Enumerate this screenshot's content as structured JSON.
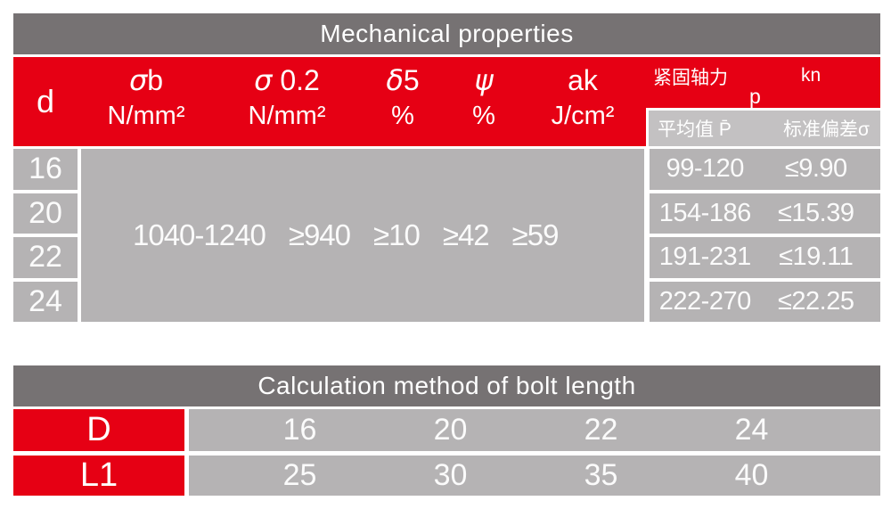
{
  "colors": {
    "red": "#e60014",
    "header_gray": "#767273",
    "cell_gray": "#b5b3b4",
    "subheader_gray": "#c3c1c2",
    "text_white": "#ffffff"
  },
  "mech_table": {
    "title": "Mechanical properties",
    "d_header": "d",
    "columns": [
      {
        "symbol_greek": "σ",
        "symbol_rest": "b",
        "unit": "N/mm²"
      },
      {
        "symbol_greek": "σ",
        "symbol_rest": " 0.2",
        "unit": "N/mm²"
      },
      {
        "symbol_greek": "δ",
        "symbol_rest": "5",
        "unit": "%"
      },
      {
        "symbol_greek": "ψ",
        "symbol_rest": "",
        "unit": "%"
      },
      {
        "symbol_greek": "",
        "symbol_rest": "ak",
        "unit": "J/cm²"
      }
    ],
    "axial_force": {
      "label": "紧固轴力",
      "p": "p",
      "unit": "kn"
    },
    "subheader": {
      "mean": "平均值 P̄",
      "stddev": "标准偏差σ"
    },
    "d_values": [
      "16",
      "20",
      "22",
      "24"
    ],
    "merged_values": [
      "1040-1240",
      "≥940",
      "≥10",
      "≥42",
      "≥59"
    ],
    "axial_rows": [
      {
        "mean": "99-120",
        "stddev": "≤9.90"
      },
      {
        "mean": "154-186",
        "stddev": "≤15.39"
      },
      {
        "mean": "191-231",
        "stddev": "≤19.11"
      },
      {
        "mean": "222-270",
        "stddev": "≤22.25"
      }
    ]
  },
  "length_table": {
    "title": "Calculation method of bolt length",
    "d_row": {
      "label": "D",
      "values": [
        "16",
        "20",
        "22",
        "24"
      ]
    },
    "l1_row": {
      "label": "L1",
      "values": [
        "25",
        "30",
        "35",
        "40"
      ]
    }
  }
}
